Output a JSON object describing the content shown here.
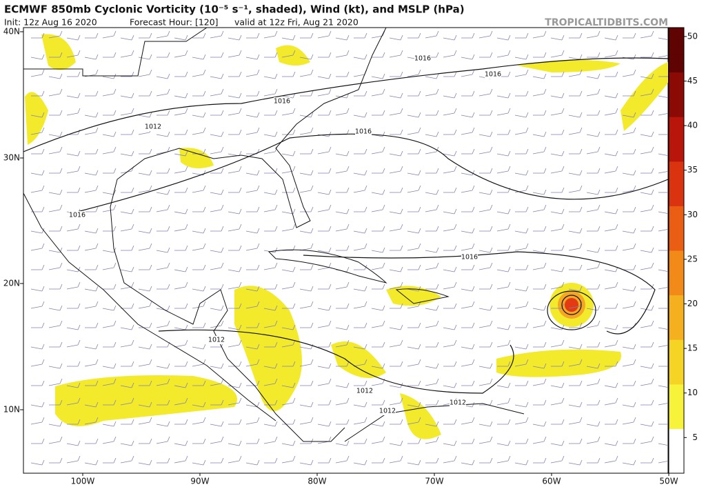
{
  "header": {
    "title": "ECMWF 850mb Cyclonic Vorticity (10⁻⁵ s⁻¹, shaded), Wind (kt), and MSLP (hPa)",
    "init": "Init: 12z Aug 16 2020",
    "forecast_hour": "Forecast Hour: [120]",
    "valid": "valid at 12z Fri, Aug 21 2020",
    "credit": "TROPICALTIDBITS.COM"
  },
  "map": {
    "lat_labels": [
      "40N",
      "30N",
      "20N",
      "10N"
    ],
    "lon_labels": [
      "100W",
      "90W",
      "80W",
      "70W",
      "60W",
      "50W"
    ],
    "isobar_labels": [
      "1016",
      "1016",
      "1016",
      "1016",
      "1016",
      "1016",
      "1012",
      "1012",
      "1012",
      "1012",
      "1012"
    ]
  },
  "colorbar": {
    "range": [
      1,
      51
    ],
    "ticks": [
      5,
      10,
      15,
      20,
      25,
      30,
      35,
      40,
      45,
      50
    ]
  }
}
